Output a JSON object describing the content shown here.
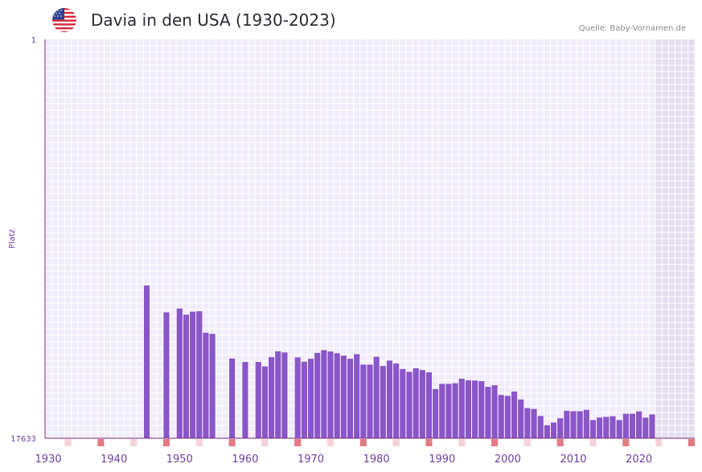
{
  "header": {
    "title": "Davia in den USA (1930-2023)",
    "source": "Quelle: Baby-Vornamen.de"
  },
  "colors": {
    "bar": "#8a55c8",
    "plot_bg": "#f1ecfb",
    "grid": "#ffffff",
    "future_band": "#e4def0",
    "axis": "#7b2d7e",
    "decade_marker": "#e37b83",
    "half_decade_marker": "#f4d3da"
  },
  "chart_data": {
    "type": "bar",
    "title": "Davia in den USA (1930-2023)",
    "xlabel": "",
    "ylabel": "Platz",
    "y_inverted": true,
    "ylim": [
      1,
      17633
    ],
    "ytick_labels": [
      "1",
      "17633"
    ],
    "xlim": [
      1929.5,
      2028.5
    ],
    "xticks": [
      1930,
      1940,
      1950,
      1960,
      1970,
      1980,
      1990,
      2000,
      2010,
      2020
    ],
    "future_band_start": 2022.5,
    "decade_marker_years": [
      1928,
      1938,
      1948,
      1958,
      1968,
      1978,
      1988,
      1998,
      2008,
      2018,
      2028
    ],
    "half_decade_marker_years": [
      1933,
      1943,
      1953,
      1963,
      1973,
      1983,
      1993,
      2003,
      2013,
      2023
    ],
    "years": [
      1945,
      1948,
      1950,
      1951,
      1952,
      1953,
      1954,
      1955,
      1958,
      1960,
      1962,
      1963,
      1964,
      1965,
      1966,
      1968,
      1969,
      1970,
      1971,
      1972,
      1973,
      1974,
      1975,
      1976,
      1977,
      1978,
      1979,
      1980,
      1981,
      1982,
      1983,
      1984,
      1985,
      1986,
      1987,
      1988,
      1989,
      1990,
      1991,
      1992,
      1993,
      1994,
      1995,
      1996,
      1997,
      1998,
      1999,
      2000,
      2001,
      2002,
      2003,
      2004,
      2005,
      2006,
      2007,
      2008,
      2009,
      2010,
      2011,
      2012,
      2013,
      2014,
      2015,
      2016,
      2017,
      2018,
      2019,
      2020,
      2021,
      2022
    ],
    "values": [
      10880,
      12068,
      11900,
      12170,
      12040,
      12020,
      12970,
      13020,
      14110,
      14260,
      14260,
      14460,
      14050,
      13790,
      13840,
      14060,
      14250,
      14120,
      13860,
      13740,
      13800,
      13880,
      13980,
      14120,
      13920,
      14380,
      14380,
      14030,
      14440,
      14200,
      14330,
      14570,
      14700,
      14540,
      14620,
      14720,
      15460,
      15230,
      15230,
      15200,
      15000,
      15070,
      15080,
      15110,
      15360,
      15290,
      15720,
      15760,
      15570,
      15920,
      16300,
      16340,
      16650,
      17060,
      16940,
      16750,
      16420,
      16440,
      16440,
      16380,
      16830,
      16720,
      16690,
      16660,
      16830,
      16550,
      16550,
      16450,
      16720,
      16580
    ]
  }
}
